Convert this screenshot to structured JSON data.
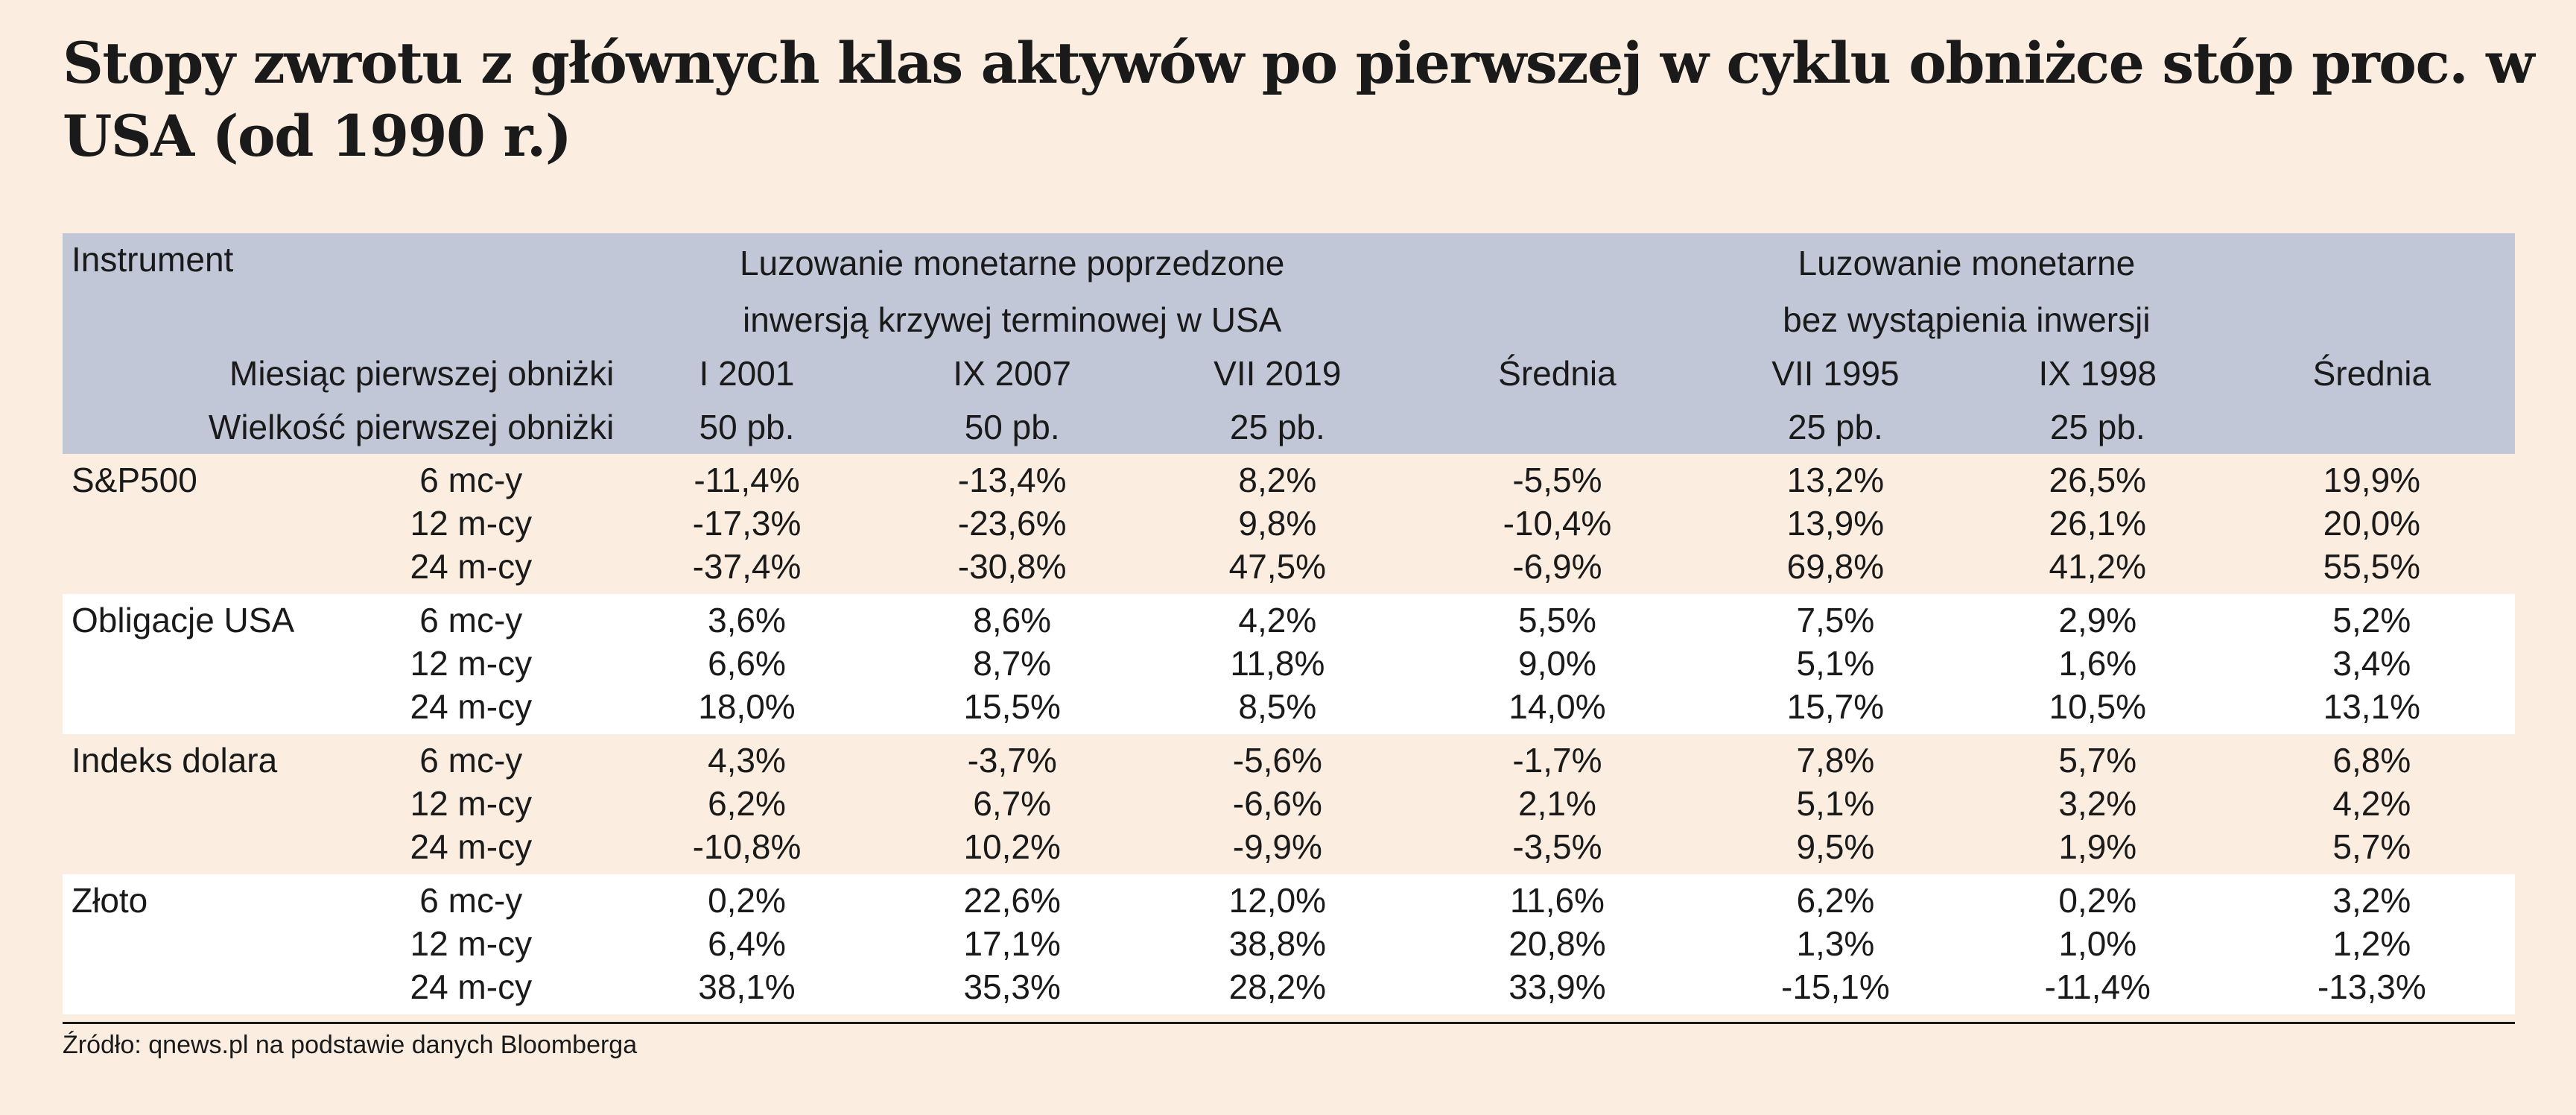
{
  "title": "Stopy zwrotu z głównych klas aktywów po pierwszej w cyklu obniżce stóp proc. w USA (od 1990 r.)",
  "source": "Źródło: qnews.pl na podstawie danych Bloomberga",
  "chart_data": {
    "type": "table",
    "header": {
      "instrument_label": "Instrument",
      "group1_line1": "Luzowanie monetarne poprzedzone",
      "group1_line2": "inwersją krzywej terminowej w USA",
      "group2_line1": "Luzowanie monetarne",
      "group2_line2": "bez wystąpienia inwersji",
      "month_label": "Miesiąc pierwszej obniżki",
      "size_label": "Wielkość pierwszej obniżki",
      "columns": [
        {
          "month": "I 2001",
          "size": "50 pb."
        },
        {
          "month": "IX 2007",
          "size": "50 pb."
        },
        {
          "month": "VII 2019",
          "size": "25 pb."
        },
        {
          "month": "Średnia",
          "size": ""
        },
        {
          "month": "VII 1995",
          "size": "25 pb."
        },
        {
          "month": "IX 1998",
          "size": "25 pb."
        },
        {
          "month": "Średnia",
          "size": ""
        }
      ]
    },
    "instruments": [
      {
        "name": "S&P500",
        "rows": [
          {
            "period": "6 mc-y",
            "values": [
              "-11,4%",
              "-13,4%",
              "8,2%",
              "-5,5%",
              "13,2%",
              "26,5%",
              "19,9%"
            ]
          },
          {
            "period": "12 m-cy",
            "values": [
              "-17,3%",
              "-23,6%",
              "9,8%",
              "-10,4%",
              "13,9%",
              "26,1%",
              "20,0%"
            ]
          },
          {
            "period": "24 m-cy",
            "values": [
              "-37,4%",
              "-30,8%",
              "47,5%",
              "-6,9%",
              "69,8%",
              "41,2%",
              "55,5%"
            ]
          }
        ]
      },
      {
        "name": "Obligacje USA",
        "rows": [
          {
            "period": "6 mc-y",
            "values": [
              "3,6%",
              "8,6%",
              "4,2%",
              "5,5%",
              "7,5%",
              "2,9%",
              "5,2%"
            ]
          },
          {
            "period": "12 m-cy",
            "values": [
              "6,6%",
              "8,7%",
              "11,8%",
              "9,0%",
              "5,1%",
              "1,6%",
              "3,4%"
            ]
          },
          {
            "period": "24 m-cy",
            "values": [
              "18,0%",
              "15,5%",
              "8,5%",
              "14,0%",
              "15,7%",
              "10,5%",
              "13,1%"
            ]
          }
        ]
      },
      {
        "name": "Indeks dolara",
        "rows": [
          {
            "period": "6 mc-y",
            "values": [
              "4,3%",
              "-3,7%",
              "-5,6%",
              "-1,7%",
              "7,8%",
              "5,7%",
              "6,8%"
            ]
          },
          {
            "period": "12 m-cy",
            "values": [
              "6,2%",
              "6,7%",
              "-6,6%",
              "2,1%",
              "5,1%",
              "3,2%",
              "4,2%"
            ]
          },
          {
            "period": "24 m-cy",
            "values": [
              "-10,8%",
              "10,2%",
              "-9,9%",
              "-3,5%",
              "9,5%",
              "1,9%",
              "5,7%"
            ]
          }
        ]
      },
      {
        "name": "Złoto",
        "rows": [
          {
            "period": "6 mc-y",
            "values": [
              "0,2%",
              "22,6%",
              "12,0%",
              "11,6%",
              "6,2%",
              "0,2%",
              "3,2%"
            ]
          },
          {
            "period": "12 m-cy",
            "values": [
              "6,4%",
              "17,1%",
              "38,8%",
              "20,8%",
              "1,3%",
              "1,0%",
              "1,2%"
            ]
          },
          {
            "period": "24 m-cy",
            "values": [
              "38,1%",
              "35,3%",
              "28,2%",
              "33,9%",
              "-15,1%",
              "-11,4%",
              "-13,3%"
            ]
          }
        ]
      }
    ]
  }
}
